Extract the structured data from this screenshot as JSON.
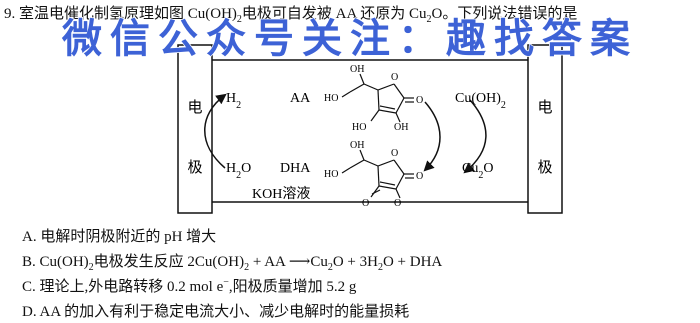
{
  "question": [
    {
      "t": "9. 室温电催化制氢原理如图 Cu(OH)"
    },
    {
      "sub": "2"
    },
    {
      "t": "电极可自发被 AA 还原为 Cu"
    },
    {
      "sub": "2"
    },
    {
      "t": "O。下列说法错误的是"
    }
  ],
  "watermark": "微信公众号关注：趣找答案",
  "diagram": {
    "left_electrode": [
      "电",
      "极"
    ],
    "right_electrode": [
      "电",
      "极"
    ],
    "h2": [
      {
        "t": "H"
      },
      {
        "sub": "2"
      }
    ],
    "h2o": [
      {
        "t": "H"
      },
      {
        "sub": "2"
      },
      {
        "t": "O"
      }
    ],
    "aa": "AA",
    "dha": "DHA",
    "koh": "KOH溶液",
    "cuoh2": [
      {
        "t": "Cu(OH)"
      },
      {
        "sub": "2"
      }
    ],
    "cu2o": [
      {
        "t": "Cu"
      },
      {
        "sub": "2"
      },
      {
        "t": "O"
      }
    ],
    "aa_atoms": [
      "OH",
      "HO",
      "O",
      "O",
      "HO",
      "OH"
    ],
    "dha_atoms": [
      "OH",
      "HO",
      "O",
      "O",
      "O",
      "O"
    ]
  },
  "options": [
    [
      {
        "t": "A. 电解时阴极附近的 pH 增大"
      }
    ],
    [
      {
        "t": "B. Cu(OH)"
      },
      {
        "sub": "2"
      },
      {
        "t": "电极发生反应 2Cu(OH)"
      },
      {
        "sub": "2"
      },
      {
        "t": " + AA ⟶Cu"
      },
      {
        "sub": "2"
      },
      {
        "t": "O + 3H"
      },
      {
        "sub": "2"
      },
      {
        "t": "O + DHA"
      }
    ],
    [
      {
        "t": "C. 理论上,外电路转移 0.2 mol e"
      },
      {
        "sup": "−"
      },
      {
        "t": ",阳极质量增加 5.2 g"
      }
    ],
    [
      {
        "t": "D. AA 的加入有利于稳定电流大小、减少电解时的能量损耗"
      }
    ]
  ]
}
